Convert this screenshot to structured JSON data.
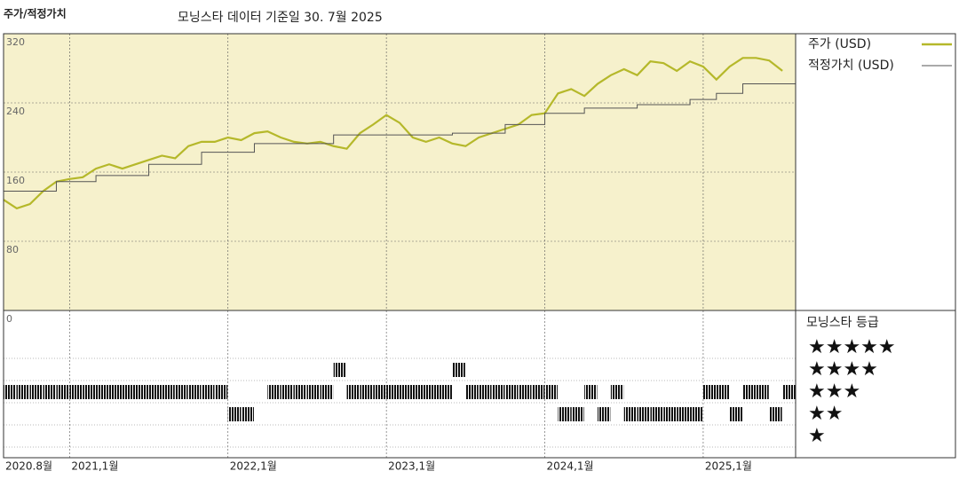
{
  "header": {
    "title": "주가/적정가치",
    "subtitle": "모닝스타 데이터 기준일 30. 7월 2025"
  },
  "chart_data": [
    {
      "type": "line",
      "legend": "right",
      "x": [
        "2020-08",
        "2020-09",
        "2020-10",
        "2020-11",
        "2020-12",
        "2021-01",
        "2021-02",
        "2021-03",
        "2021-04",
        "2021-05",
        "2021-06",
        "2021-07",
        "2021-08",
        "2021-09",
        "2021-10",
        "2021-11",
        "2021-12",
        "2022-01",
        "2022-02",
        "2022-03",
        "2022-04",
        "2022-05",
        "2022-06",
        "2022-07",
        "2022-08",
        "2022-09",
        "2022-10",
        "2022-11",
        "2022-12",
        "2023-01",
        "2023-02",
        "2023-03",
        "2023-04",
        "2023-05",
        "2023-06",
        "2023-07",
        "2023-08",
        "2023-09",
        "2023-10",
        "2023-11",
        "2023-12",
        "2024-01",
        "2024-02",
        "2024-03",
        "2024-04",
        "2024-05",
        "2024-06",
        "2024-07",
        "2024-08",
        "2024-09",
        "2024-10",
        "2024-11",
        "2024-12",
        "2025-01",
        "2025-02",
        "2025-03",
        "2025-04",
        "2025-05",
        "2025-06",
        "2025-07"
      ],
      "series": [
        {
          "name": "주가 (USD)",
          "color": "#b5b82a",
          "values": [
            128,
            118,
            123,
            138,
            149,
            152,
            154,
            164,
            169,
            164,
            169,
            174,
            179,
            176,
            190,
            195,
            195,
            200,
            197,
            205,
            207,
            200,
            195,
            193,
            195,
            190,
            187,
            205,
            215,
            226,
            217,
            200,
            195,
            200,
            193,
            190,
            200,
            205,
            210,
            215,
            226,
            228,
            251,
            256,
            248,
            262,
            272,
            279,
            272,
            288,
            286,
            277,
            288,
            282,
            267,
            282,
            292,
            292,
            289,
            277
          ]
        },
        {
          "name": "적정가치 (USD)",
          "color": "#555555",
          "step": true,
          "values": [
            138,
            138,
            138,
            138,
            149,
            149,
            149,
            156,
            156,
            156,
            156,
            169,
            169,
            169,
            169,
            183,
            183,
            183,
            183,
            193,
            193,
            193,
            193,
            193,
            193,
            203,
            203,
            203,
            203,
            203,
            203,
            203,
            203,
            203,
            205,
            205,
            205,
            205,
            215,
            215,
            215,
            228,
            228,
            228,
            234,
            234,
            234,
            234,
            238,
            238,
            238,
            238,
            244,
            244,
            251,
            251,
            262,
            262,
            262,
            262
          ]
        }
      ],
      "xlim": [
        "2020-08",
        "2025-08"
      ],
      "xticks": [
        {
          "value": "2020-08",
          "label": "2020.8월"
        },
        {
          "value": "2021-01",
          "label": "2021,1월"
        },
        {
          "value": "2022-01",
          "label": "2022,1월"
        },
        {
          "value": "2023-01",
          "label": "2023,1월"
        },
        {
          "value": "2024-01",
          "label": "2024,1월"
        },
        {
          "value": "2025-01",
          "label": "2025,1월"
        }
      ],
      "ylim": [
        0,
        320
      ],
      "yticks": [
        0,
        80,
        160,
        240,
        320
      ],
      "grid": true,
      "background": "#f6f1cc"
    },
    {
      "type": "rating",
      "title": "모닝스타 등급",
      "color": "#111111",
      "levels": [
        {
          "value": 5,
          "label": "★★★★★"
        },
        {
          "value": 4,
          "label": "★★★★"
        },
        {
          "value": 3,
          "label": "★★★"
        },
        {
          "value": 2,
          "label": "★★"
        },
        {
          "value": 1,
          "label": "★"
        }
      ],
      "values": [
        3,
        3,
        3,
        3,
        3,
        3,
        3,
        3,
        3,
        3,
        3,
        3,
        3,
        3,
        3,
        3,
        3,
        2,
        2,
        null,
        3,
        3,
        3,
        3,
        3,
        4,
        3,
        3,
        3,
        3,
        3,
        3,
        3,
        3,
        4,
        3,
        3,
        3,
        3,
        3,
        3,
        3,
        2,
        2,
        3,
        2,
        3,
        2,
        2,
        2,
        2,
        2,
        2,
        3,
        3,
        2,
        3,
        3,
        2,
        3
      ]
    }
  ]
}
